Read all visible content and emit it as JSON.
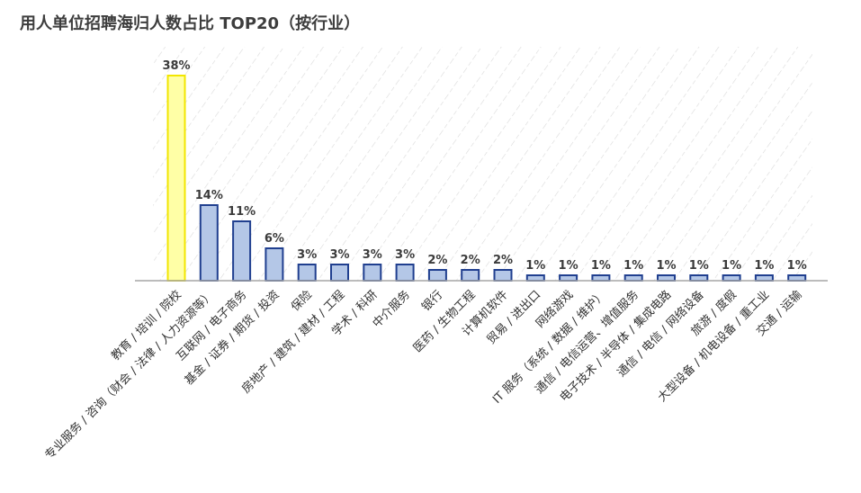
{
  "title": "用人单位招聘海归人数占比 TOP20（按行业）",
  "colors": {
    "bar_fill": "#b4c7e7",
    "bar_stroke": "#203f8f",
    "highlight_fill": "#ffffa6",
    "highlight_stroke": "#f2e600",
    "hatch": "#d9d9d9",
    "axis": "#a6a6a6"
  },
  "chart_data": {
    "type": "bar",
    "title": "用人单位招聘海归人数占比 TOP20（按行业）",
    "xlabel": "",
    "ylabel": "",
    "grid": false,
    "legend": "none",
    "ylim": [
      0,
      40
    ],
    "highlight_index": 0,
    "categories": [
      "教育 / 培训 / 院校",
      "专业服务 / 咨询（财会 / 法律 / 人力资源等）",
      "互联网 / 电子商务",
      "基金 / 证券 / 期货 / 投资",
      "保险",
      "房地产 / 建筑 / 建材 / 工程",
      "学术 / 科研",
      "中介服务",
      "银行",
      "医药 / 生物工程",
      "计算机软件",
      "贸易 / 进出口",
      "网络游戏",
      "IT 服务（系统 / 数据 / 维护）",
      "通信 / 电信运营、增值服务",
      "电子技术 / 半导体 / 集成电路",
      "通信 / 电信 / 网络设备",
      "旅游 / 度假",
      "大型设备 / 机电设备 / 重工业",
      "交通 / 运输"
    ],
    "values": [
      38,
      14,
      11,
      6,
      3,
      3,
      3,
      3,
      2,
      2,
      2,
      1,
      1,
      1,
      1,
      1,
      1,
      1,
      1,
      1
    ],
    "labels": [
      "38%",
      "14%",
      "11%",
      "6%",
      "3%",
      "3%",
      "3%",
      "3%",
      "2%",
      "2%",
      "2%",
      "1%",
      "1%",
      "1%",
      "1%",
      "1%",
      "1%",
      "1%",
      "1%",
      "1%"
    ]
  }
}
